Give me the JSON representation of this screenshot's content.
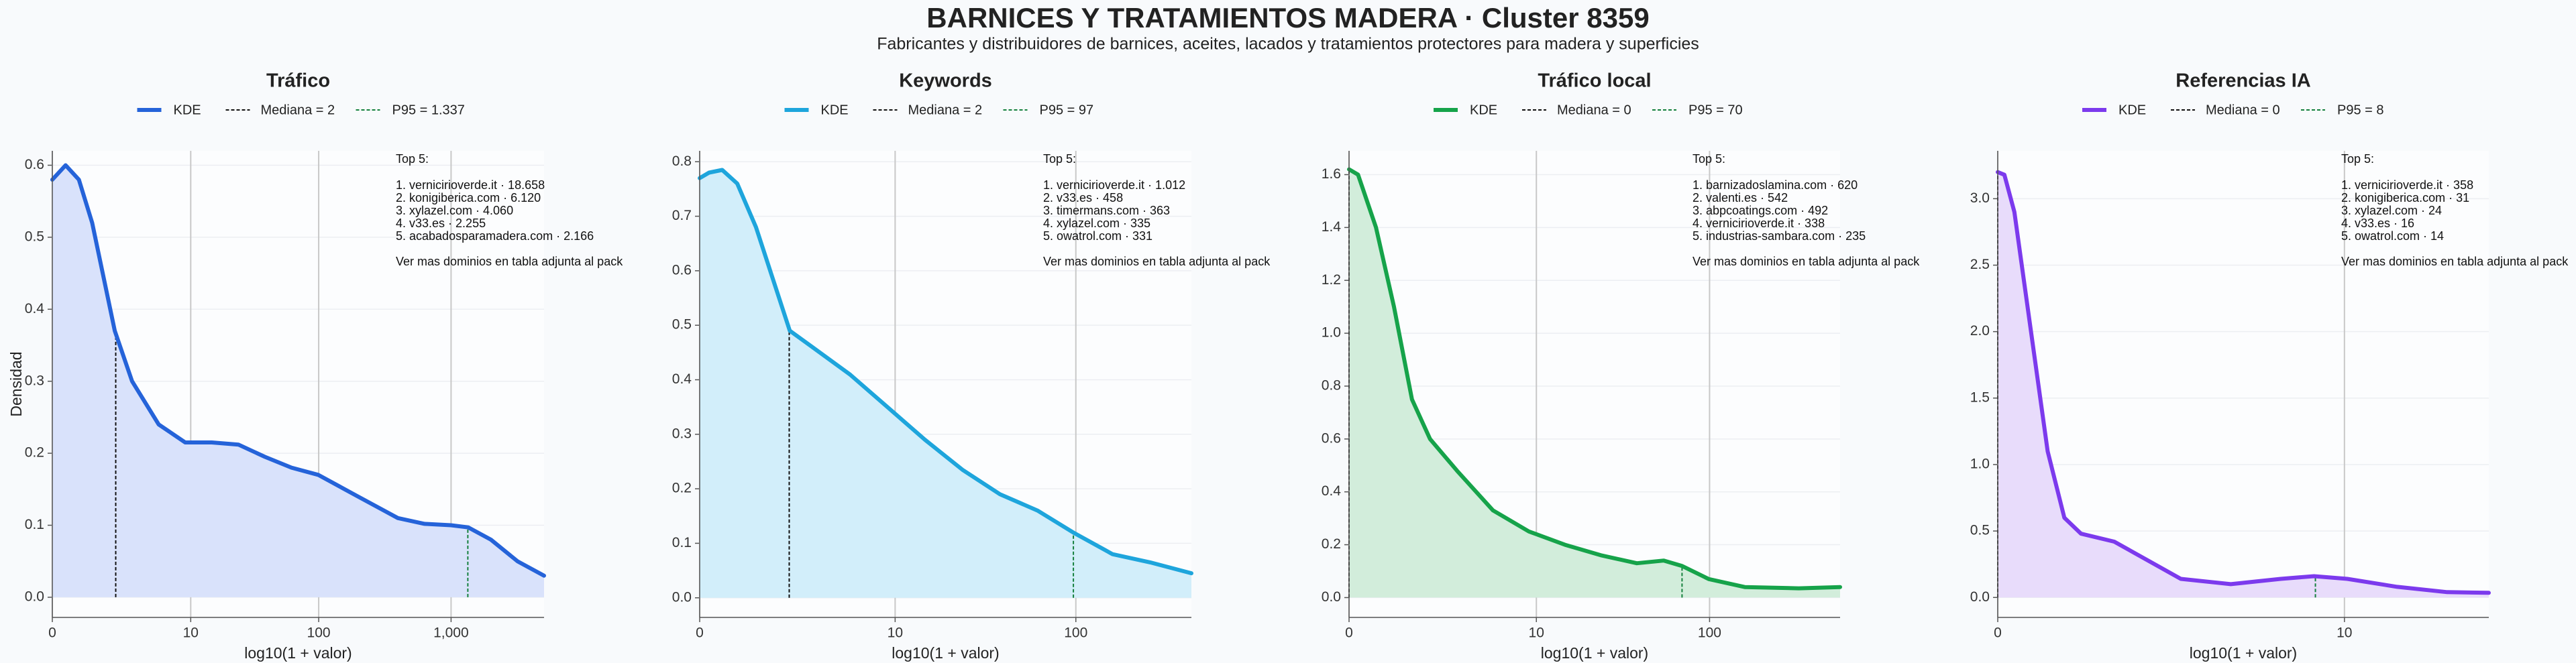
{
  "title": "BARNICES Y TRATAMIENTOS MADERA · Cluster 8359",
  "subtitle": "Fabricantes y distribuidores de barnices, aceites, lacados y tratamientos protectores para madera y superficies",
  "chart_data": [
    {
      "type": "kde",
      "title": "Tráfico",
      "xlabel": "log10(1 + valor)",
      "ylabel": "Densidad",
      "x": [
        0,
        0.1,
        0.2,
        0.3,
        0.47,
        0.6,
        0.8,
        1.0,
        1.2,
        1.4,
        1.6,
        1.8,
        2.0,
        2.3,
        2.6,
        2.8,
        3.0,
        3.13,
        3.3,
        3.5,
        3.7
      ],
      "series": [
        {
          "name": "KDE",
          "color": "#2563d9",
          "fill": "#d9e2fb",
          "values": [
            0.58,
            0.6,
            0.58,
            0.52,
            0.37,
            0.3,
            0.24,
            0.215,
            0.215,
            0.212,
            0.195,
            0.18,
            0.17,
            0.14,
            0.11,
            0.102,
            0.1,
            0.097,
            0.08,
            0.05,
            0.03
          ]
        }
      ],
      "median": {
        "label": "Mediana = 2",
        "x": 0.4771,
        "color": "#111111"
      },
      "p95": {
        "label": "P95 = 1.337",
        "x": 3.1265,
        "color": "#15803d"
      },
      "xlim": [
        0,
        3.7
      ],
      "ylim": [
        -0.028,
        0.62
      ],
      "xticks": [
        0,
        {
          "value": 1.0414,
          "label": "10"
        },
        {
          "value": 2.0043,
          "label": "100"
        },
        {
          "value": 3.0004,
          "label": "1,000"
        }
      ],
      "yticks": [
        {
          "value": 0,
          "label": "0.0"
        },
        0.1,
        0.2,
        0.3,
        0.4,
        0.5,
        0.6
      ],
      "annotation": {
        "heading": "Top 5:",
        "items": [
          "1. vernicirioverde.it · 18.658",
          "2. konigiberica.com · 6.120",
          "3. xylazel.com · 4.060",
          "4. v33.es · 2.255",
          "5. acabadosparamadera.com · 2.166"
        ],
        "footer": "Ver mas dominios en tabla adjunta al pack"
      }
    },
    {
      "type": "kde",
      "title": "Keywords",
      "xlabel": "log10(1 + valor)",
      "x": [
        0,
        0.05,
        0.12,
        0.2,
        0.3,
        0.48,
        0.6,
        0.8,
        1.0,
        1.2,
        1.4,
        1.6,
        1.8,
        1.99,
        2.2,
        2.4,
        2.62
      ],
      "series": [
        {
          "name": "KDE",
          "color": "#1ea5dc",
          "fill": "#d2eefa",
          "values": [
            0.77,
            0.78,
            0.785,
            0.76,
            0.68,
            0.49,
            0.46,
            0.41,
            0.35,
            0.29,
            0.235,
            0.19,
            0.16,
            0.12,
            0.08,
            0.065,
            0.045
          ]
        }
      ],
      "median": {
        "label": "Mediana = 2",
        "x": 0.4771,
        "color": "#111111"
      },
      "p95": {
        "label": "P95 = 97",
        "x": 1.9912,
        "color": "#15803d"
      },
      "xlim": [
        0,
        2.62
      ],
      "ylim": [
        -0.036,
        0.82
      ],
      "xticks": [
        0,
        {
          "value": 1.0414,
          "label": "10"
        },
        {
          "value": 2.0043,
          "label": "100"
        }
      ],
      "yticks": [
        {
          "value": 0,
          "label": "0.0"
        },
        0.1,
        0.2,
        0.3,
        0.4,
        0.5,
        0.6,
        0.7,
        0.8
      ],
      "annotation": {
        "heading": "Top 5:",
        "items": [
          "1. vernicirioverde.it · 1.012",
          "2. v33.es · 458",
          "3. timermans.com · 363",
          "4. xylazel.com · 335",
          "5. owatrol.com · 331"
        ],
        "footer": "Ver mas dominios en tabla adjunta al pack"
      }
    },
    {
      "type": "kde",
      "title": "Tráfico local",
      "xlabel": "log10(1 + valor)",
      "x": [
        0,
        0.05,
        0.15,
        0.25,
        0.35,
        0.45,
        0.6,
        0.8,
        1.0,
        1.2,
        1.4,
        1.6,
        1.75,
        1.85,
        2.0,
        2.2,
        2.5,
        2.73
      ],
      "series": [
        {
          "name": "KDE",
          "color": "#16a34a",
          "fill": "#d2eddb",
          "values": [
            1.62,
            1.6,
            1.4,
            1.1,
            0.75,
            0.6,
            0.48,
            0.33,
            0.25,
            0.2,
            0.16,
            0.13,
            0.14,
            0.12,
            0.07,
            0.04,
            0.035,
            0.04
          ]
        }
      ],
      "median": {
        "label": "Mediana = 0",
        "x": 0,
        "color": "#111111"
      },
      "p95": {
        "label": "P95 = 70",
        "x": 1.8513,
        "color": "#15803d"
      },
      "xlim": [
        0,
        2.73
      ],
      "ylim": [
        -0.075,
        1.69
      ],
      "xticks": [
        0,
        {
          "value": 1.0414,
          "label": "10"
        },
        {
          "value": 2.0043,
          "label": "100"
        }
      ],
      "yticks": [
        {
          "value": 0,
          "label": "0.0"
        },
        0.2,
        0.4,
        0.6,
        0.8,
        {
          "value": 1,
          "label": "1.0"
        },
        1.2,
        1.4,
        1.6
      ],
      "annotation": {
        "heading": "Top 5:",
        "items": [
          "1. barnizadoslamina.com · 620",
          "2. valenti.es · 542",
          "3. abpcoatings.com · 492",
          "4. vernicirioverde.it · 338",
          "5. industrias-sambara.com · 235"
        ],
        "footer": "Ver mas dominios en tabla adjunta al pack"
      }
    },
    {
      "type": "kde",
      "title": "Referencias IA",
      "xlabel": "log10(1 + valor)",
      "x": [
        0,
        0.02,
        0.05,
        0.1,
        0.15,
        0.2,
        0.25,
        0.35,
        0.45,
        0.55,
        0.7,
        0.85,
        0.95,
        1.05,
        1.2,
        1.35,
        1.475
      ],
      "series": [
        {
          "name": "KDE",
          "color": "#7c3aed",
          "fill": "#e8dcfb",
          "values": [
            3.2,
            3.18,
            2.9,
            2.0,
            1.1,
            0.6,
            0.48,
            0.42,
            0.28,
            0.14,
            0.1,
            0.14,
            0.16,
            0.14,
            0.08,
            0.04,
            0.035
          ]
        }
      ],
      "median": {
        "label": "Mediana = 0",
        "x": 0,
        "color": "#111111"
      },
      "p95": {
        "label": "P95 = 8",
        "x": 0.9542,
        "color": "#15803d"
      },
      "xlim": [
        0,
        1.475
      ],
      "ylim": [
        -0.15,
        3.36
      ],
      "xticks": [
        0,
        {
          "value": 1.0414,
          "label": "10"
        }
      ],
      "yticks": [
        {
          "value": 0,
          "label": "0.0"
        },
        0.5,
        {
          "value": 1,
          "label": "1.0"
        },
        1.5,
        {
          "value": 2,
          "label": "2.0"
        },
        2.5,
        {
          "value": 3,
          "label": "3.0"
        }
      ],
      "annotation": {
        "heading": "Top 5:",
        "items": [
          "1. vernicirioverde.it · 358",
          "2. konigiberica.com · 31",
          "3. xylazel.com · 24",
          "4. v33.es · 16",
          "5. owatrol.com · 14"
        ],
        "footer": "Ver mas dominios en tabla adjunta al pack"
      }
    }
  ]
}
